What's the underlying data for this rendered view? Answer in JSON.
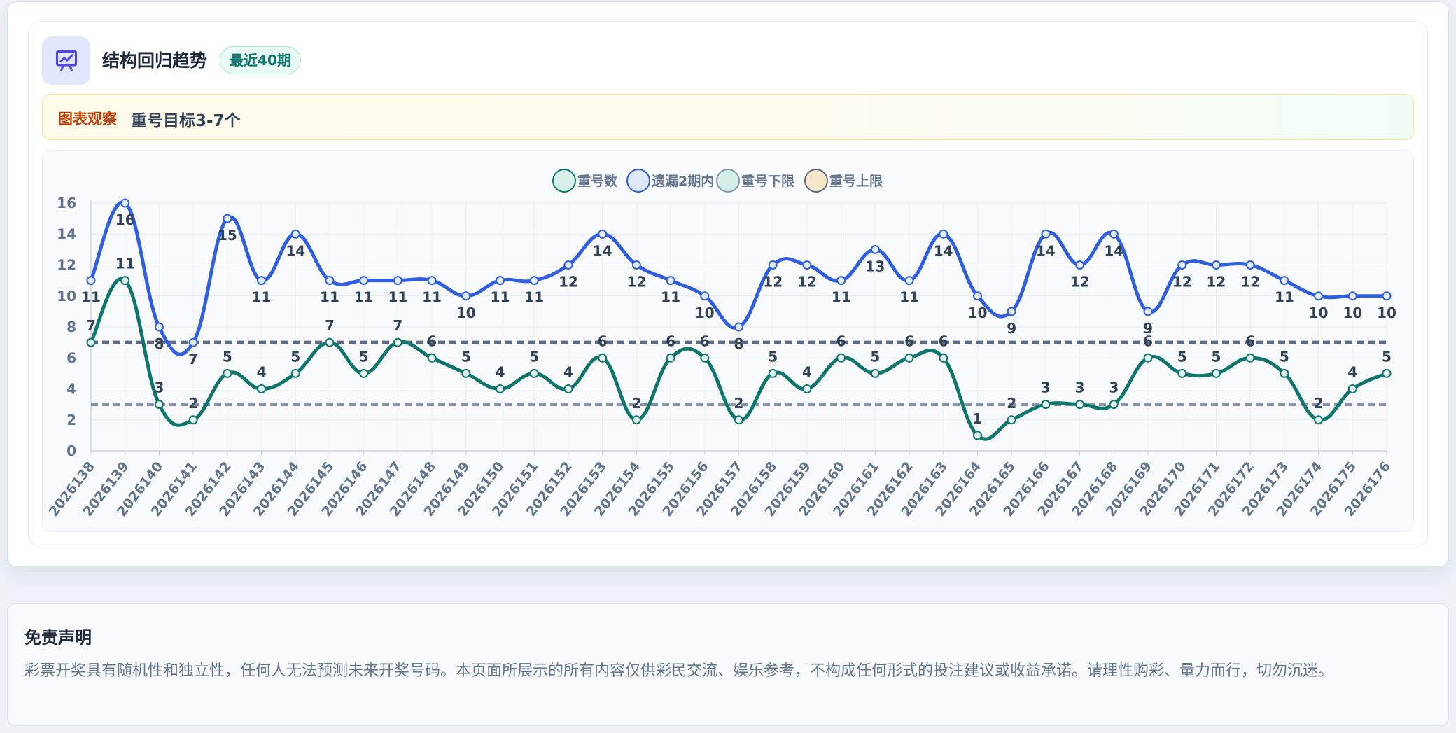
{
  "header": {
    "title": "结构回归趋势",
    "badge": "最近40期",
    "icon": "presentation-chart-icon"
  },
  "note": {
    "label": "图表观察",
    "text": "重号目标3-7个"
  },
  "disclaimer": {
    "title": "免责声明",
    "text": "彩票开奖具有随机性和独立性，任何人无法预测未来开奖号码。本页面所展示的所有内容仅供彩民交流、娱乐参考，不构成任何形式的投注建议或收益承诺。请理性购彩、量力而行，切勿沉迷。"
  },
  "colors": {
    "repeat_line": "#0f766e",
    "missing_line": "#2f5fe0",
    "lower_line": "#8a94a8",
    "upper_line": "#5f6884",
    "accent": "#4f46e5"
  },
  "chart_data": {
    "type": "line",
    "x": [
      "2026138",
      "2026139",
      "2026140",
      "2026141",
      "2026142",
      "2026143",
      "2026144",
      "2026145",
      "2026146",
      "2026147",
      "2026148",
      "2026149",
      "2026150",
      "2026151",
      "2026152",
      "2026153",
      "2026154",
      "2026155",
      "2026156",
      "2026157",
      "2026158",
      "2026159",
      "2026160",
      "2026161",
      "2026162",
      "2026163",
      "2026164",
      "2026165",
      "2026166",
      "2026167",
      "2026168",
      "2026169",
      "2026170",
      "2026171",
      "2026172",
      "2026173",
      "2026174",
      "2026175",
      "2026176"
    ],
    "ylim": [
      0,
      16
    ],
    "yticks": [
      0,
      2,
      4,
      6,
      8,
      10,
      12,
      14,
      16
    ],
    "grid": true,
    "legend_position": "top-center",
    "series": [
      {
        "name": "重号数",
        "color": "#0f766e",
        "labels": true,
        "values": [
          7,
          11,
          3,
          2,
          5,
          4,
          5,
          7,
          5,
          7,
          6,
          5,
          4,
          5,
          4,
          6,
          2,
          6,
          6,
          2,
          5,
          4,
          6,
          5,
          6,
          6,
          1,
          2,
          3,
          3,
          3,
          6,
          5,
          5,
          6,
          5,
          2,
          4,
          5
        ]
      },
      {
        "name": "遗漏2期内",
        "color": "#2f5fe0",
        "labels": true,
        "values": [
          11,
          16,
          8,
          7,
          15,
          11,
          14,
          11,
          11,
          11,
          11,
          10,
          11,
          11,
          12,
          14,
          12,
          11,
          10,
          8,
          12,
          12,
          11,
          13,
          11,
          14,
          10,
          9,
          14,
          12,
          14,
          9,
          12,
          12,
          12,
          11,
          10,
          10,
          10
        ]
      },
      {
        "name": "重号下限",
        "color": "#8a94a8",
        "dashed": true,
        "value": 3
      },
      {
        "name": "重号上限",
        "color": "#5f6884",
        "dashed": true,
        "value": 7
      }
    ]
  }
}
